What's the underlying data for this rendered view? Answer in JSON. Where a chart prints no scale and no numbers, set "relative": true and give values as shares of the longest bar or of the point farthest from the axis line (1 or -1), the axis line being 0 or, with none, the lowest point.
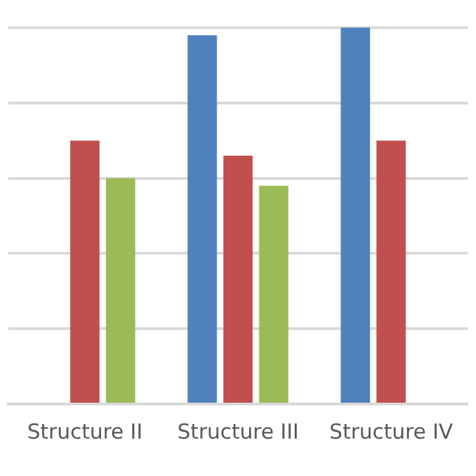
{
  "chart_data": {
    "type": "bar",
    "relative": true,
    "grid": "y",
    "categories": [
      "Structure II",
      "Structure III",
      "Structure IV"
    ],
    "series": [
      {
        "color": "#4f81bd",
        "values": [
          null,
          0.98,
          1
        ]
      },
      {
        "color": "#c0504d",
        "values": [
          0.7,
          0.66,
          0.7
        ]
      },
      {
        "color": "#9bbb59",
        "values": [
          0.6,
          0.58,
          null
        ]
      }
    ]
  }
}
